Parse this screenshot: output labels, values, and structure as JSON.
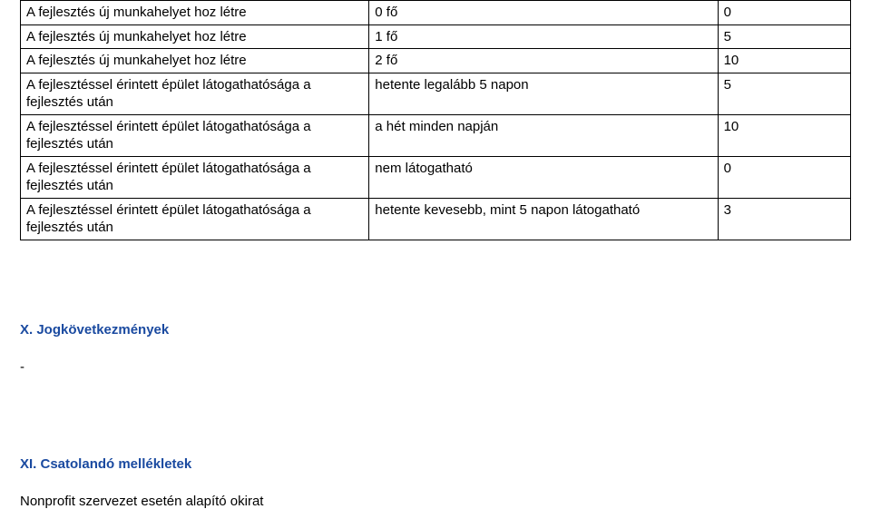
{
  "table": {
    "border_color": "#000000",
    "background_color": "#ffffff",
    "font_size": 15,
    "columns": [
      {
        "width_pct": 42
      },
      {
        "width_pct": 42
      },
      {
        "width_pct": 16
      }
    ],
    "rows": [
      {
        "c1": "A fejlesztés új munkahelyet hoz létre",
        "c2": "0 fő",
        "c3": "0"
      },
      {
        "c1": "A fejlesztés új munkahelyet hoz létre",
        "c2": "1 fő",
        "c3": "5"
      },
      {
        "c1": "A fejlesztés új munkahelyet hoz létre",
        "c2": "2 fő",
        "c3": "10"
      },
      {
        "c1": "A fejlesztéssel érintett épület látogathatósága a fejlesztés után",
        "c2": "hetente legalább 5 napon",
        "c3": "5"
      },
      {
        "c1": "A fejlesztéssel érintett épület látogathatósága a fejlesztés után",
        "c2": "a hét minden napján",
        "c3": "10"
      },
      {
        "c1": "A fejlesztéssel érintett épület látogathatósága a fejlesztés után",
        "c2": "nem látogatható",
        "c3": "0"
      },
      {
        "c1": "A fejlesztéssel érintett épület látogathatósága a fejlesztés után",
        "c2": "hetente kevesebb, mint 5 napon látogatható",
        "c3": "3"
      }
    ]
  },
  "sections": {
    "x_heading": "X. Jogkövetkezmények",
    "dash": "-",
    "xi_heading": "XI. Csatolandó mellékletek",
    "body_line": "Nonprofit szervezet esetén alapító okirat"
  },
  "heading_color": "#1a4aa0"
}
